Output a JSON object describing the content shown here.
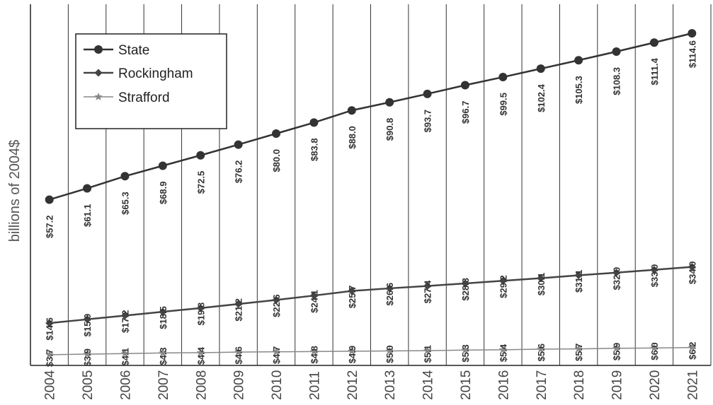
{
  "chart_data": {
    "type": "line",
    "ylabel": "billions of 2004$",
    "xlabel": "",
    "categories": [
      "2004",
      "2005",
      "2006",
      "2007",
      "2008",
      "2009",
      "2010",
      "2011",
      "2012",
      "2013",
      "2014",
      "2015",
      "2016",
      "2017",
      "2018",
      "2019",
      "2020",
      "2021"
    ],
    "ylim": [
      0,
      125
    ],
    "grid": "vertical",
    "legend_position": "top-left",
    "series": [
      {
        "name": "State",
        "marker": "circle",
        "color": "#333333",
        "values": [
          57.2,
          61.1,
          65.3,
          68.9,
          72.5,
          76.2,
          80.0,
          83.8,
          88.0,
          90.8,
          93.7,
          96.7,
          99.5,
          102.4,
          105.3,
          108.3,
          111.4,
          114.6
        ],
        "labels": [
          "$57.2",
          "$61.1",
          "$65.3",
          "$68.9",
          "$72.5",
          "$76.2",
          "$80.0",
          "$83.8",
          "$88.0",
          "$90.8",
          "$93.7",
          "$96.7",
          "$99.5",
          "$102.4",
          "$105.3",
          "$108.3",
          "$111.4",
          "$114.6"
        ]
      },
      {
        "name": "Rockingham",
        "marker": "diamond",
        "color": "#444444",
        "values": [
          14.6,
          15.9,
          17.2,
          18.5,
          19.8,
          21.2,
          22.6,
          24.1,
          25.7,
          26.6,
          27.4,
          28.3,
          29.2,
          30.1,
          31.1,
          32.0,
          33.0,
          34.0
        ],
        "labels": [
          "$14.6",
          "$15.9",
          "$17.2",
          "$18.5",
          "$19.8",
          "$21.2",
          "$22.6",
          "$24.1",
          "$25.7",
          "$26.6",
          "$27.4",
          "$28.3",
          "$29.2",
          "$30.1",
          "$31.1",
          "$32.0",
          "$33.0",
          "$34.0"
        ]
      },
      {
        "name": "Strafford",
        "marker": "star",
        "color": "#888888",
        "values": [
          3.7,
          3.9,
          4.1,
          4.3,
          4.4,
          4.6,
          4.7,
          4.8,
          4.9,
          5.0,
          5.1,
          5.3,
          5.4,
          5.6,
          5.7,
          5.9,
          6.0,
          6.2
        ],
        "labels": [
          "$3.7",
          "$3.9",
          "$4.1",
          "$4.3",
          "$4.4",
          "$4.6",
          "$4.7",
          "$4.8",
          "$4.9",
          "$5.0",
          "$5.1",
          "$5.3",
          "$5.4",
          "$5.6",
          "$5.7",
          "$5.9",
          "$6.0",
          "$6.2"
        ]
      }
    ]
  }
}
